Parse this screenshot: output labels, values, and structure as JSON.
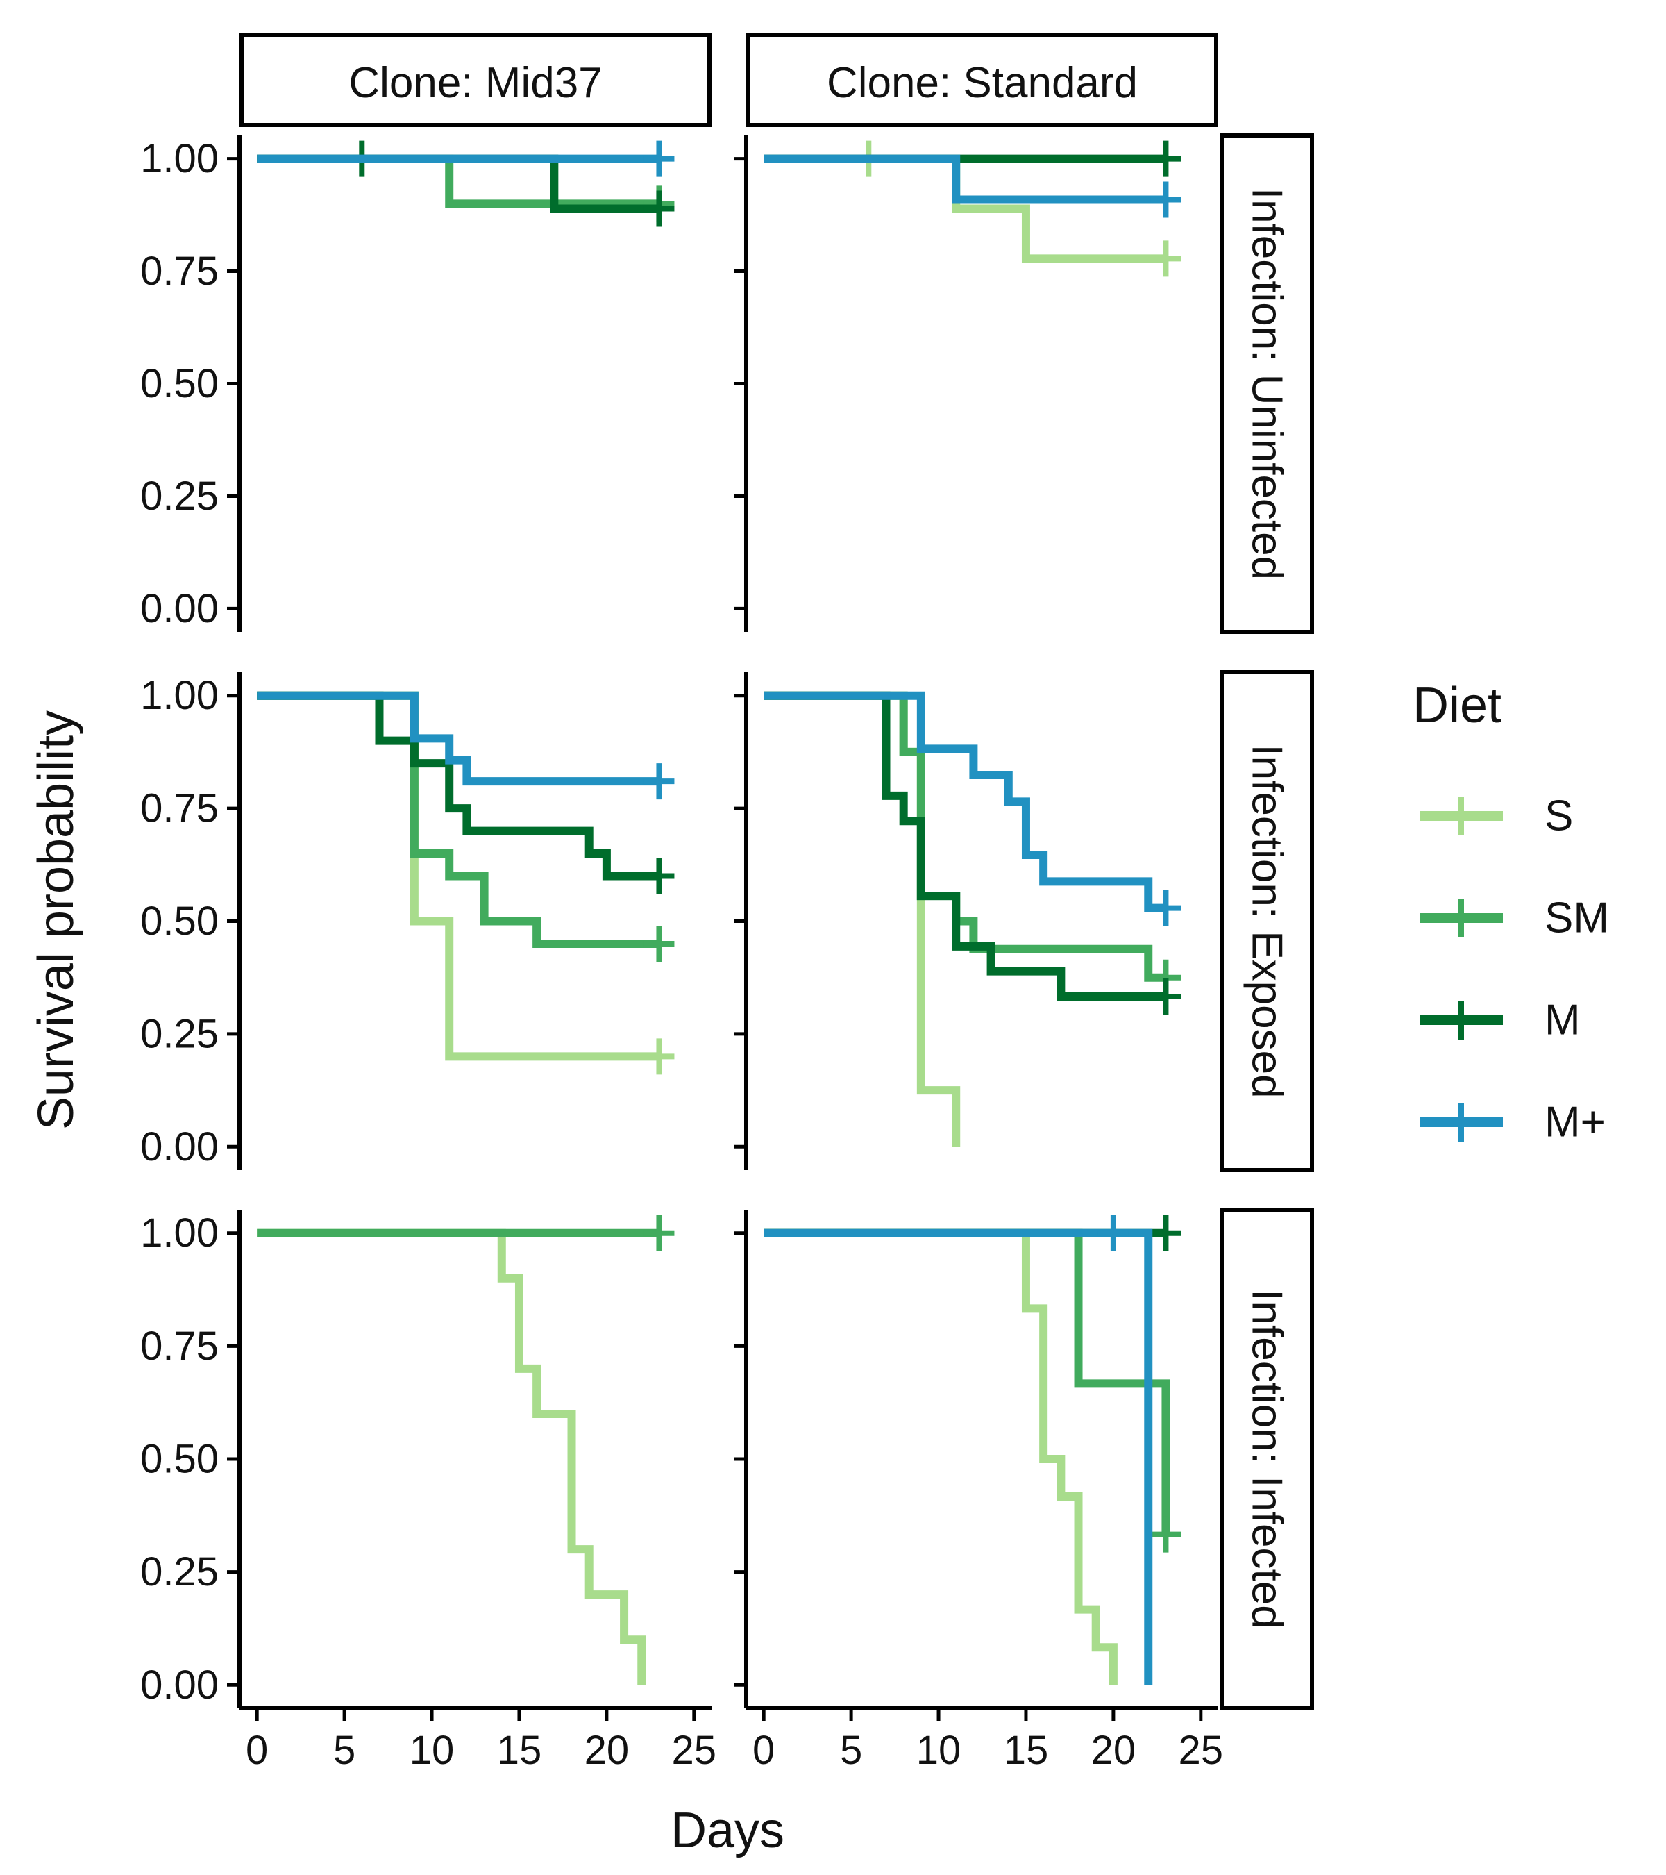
{
  "chart_data": {
    "type": "line",
    "subtype": "kaplan-meier-step",
    "ylabel": "Survival probability",
    "xlabel": "Days",
    "xlim": [
      -1,
      26
    ],
    "ylim": [
      0,
      1
    ],
    "x_ticks": [
      "0",
      "5",
      "10",
      "15",
      "20",
      "25"
    ],
    "y_ticks": [
      "0.00",
      "0.25",
      "0.50",
      "0.75",
      "1.00"
    ],
    "grid": false,
    "legend": {
      "title": "Diet",
      "position": "right",
      "items": [
        {
          "label": "S",
          "color": "#a8dc8c"
        },
        {
          "label": "SM",
          "color": "#41ab5d"
        },
        {
          "label": "M",
          "color": "#006d2c"
        },
        {
          "label": "M+",
          "color": "#2191c1"
        }
      ]
    },
    "column_facets": [
      "Clone: Mid37",
      "Clone: Standard"
    ],
    "row_facets": [
      "Infection: Uninfected",
      "Infection: Exposed",
      "Infection: Infected"
    ],
    "panels": [
      {
        "row": 0,
        "col": 0,
        "series": [
          {
            "name": "SM",
            "color": "#41ab5d",
            "steps": [
              [
                0,
                1
              ],
              [
                11,
                0.9
              ]
            ],
            "end": 23,
            "censor": [
              [
                23,
                0.9
              ]
            ]
          },
          {
            "name": "M",
            "color": "#006d2c",
            "steps": [
              [
                0,
                1
              ],
              [
                17,
                0.889
              ]
            ],
            "end": 23,
            "censor": [
              [
                6,
                1
              ],
              [
                23,
                0.889
              ]
            ]
          },
          {
            "name": "M+",
            "color": "#2191c1",
            "steps": [
              [
                0,
                1
              ]
            ],
            "end": 23,
            "censor": [
              [
                23,
                1
              ]
            ]
          }
        ]
      },
      {
        "row": 0,
        "col": 1,
        "series": [
          {
            "name": "S",
            "color": "#a8dc8c",
            "steps": [
              [
                0,
                1
              ],
              [
                11,
                0.889
              ],
              [
                15,
                0.778
              ]
            ],
            "end": 23,
            "censor": [
              [
                6,
                1
              ],
              [
                23,
                0.778
              ]
            ]
          },
          {
            "name": "M",
            "color": "#006d2c",
            "steps": [
              [
                0,
                1
              ]
            ],
            "end": 23,
            "censor": [
              [
                23,
                1
              ]
            ]
          },
          {
            "name": "M+",
            "color": "#2191c1",
            "steps": [
              [
                0,
                1
              ],
              [
                11,
                0.909
              ]
            ],
            "end": 23,
            "censor": [
              [
                23,
                0.909
              ]
            ]
          }
        ]
      },
      {
        "row": 1,
        "col": 0,
        "series": [
          {
            "name": "S",
            "color": "#a8dc8c",
            "steps": [
              [
                0,
                1
              ],
              [
                9,
                0.5
              ],
              [
                11,
                0.2
              ]
            ],
            "end": 23,
            "censor": [
              [
                23,
                0.2
              ]
            ]
          },
          {
            "name": "SM",
            "color": "#41ab5d",
            "steps": [
              [
                0,
                1
              ],
              [
                9,
                0.65
              ],
              [
                11,
                0.6
              ],
              [
                13,
                0.5
              ],
              [
                16,
                0.45
              ]
            ],
            "end": 23,
            "censor": [
              [
                23,
                0.45
              ]
            ]
          },
          {
            "name": "M",
            "color": "#006d2c",
            "steps": [
              [
                0,
                1
              ],
              [
                7,
                0.9
              ],
              [
                9,
                0.85
              ],
              [
                11,
                0.75
              ],
              [
                12,
                0.7
              ],
              [
                19,
                0.65
              ],
              [
                20,
                0.6
              ]
            ],
            "end": 23,
            "censor": [
              [
                23,
                0.6
              ]
            ]
          },
          {
            "name": "M+",
            "color": "#2191c1",
            "steps": [
              [
                0,
                1
              ],
              [
                9,
                0.905
              ],
              [
                11,
                0.857
              ],
              [
                12,
                0.81
              ]
            ],
            "end": 23,
            "censor": [
              [
                23,
                0.81
              ]
            ]
          }
        ]
      },
      {
        "row": 1,
        "col": 1,
        "series": [
          {
            "name": "S",
            "color": "#a8dc8c",
            "steps": [
              [
                0,
                1
              ],
              [
                8,
                0.875
              ],
              [
                9,
                0.125
              ],
              [
                11,
                0
              ]
            ],
            "end": 11,
            "censor": []
          },
          {
            "name": "SM",
            "color": "#41ab5d",
            "steps": [
              [
                0,
                1
              ],
              [
                8,
                0.875
              ],
              [
                9,
                0.556
              ],
              [
                11,
                0.5
              ],
              [
                12,
                0.438
              ],
              [
                22,
                0.375
              ]
            ],
            "end": 23,
            "censor": [
              [
                23,
                0.375
              ]
            ]
          },
          {
            "name": "M",
            "color": "#006d2c",
            "steps": [
              [
                0,
                1
              ],
              [
                7,
                0.778
              ],
              [
                8,
                0.722
              ],
              [
                9,
                0.556
              ],
              [
                11,
                0.444
              ],
              [
                13,
                0.389
              ],
              [
                17,
                0.333
              ]
            ],
            "end": 23,
            "censor": [
              [
                23,
                0.333
              ]
            ]
          },
          {
            "name": "M+",
            "color": "#2191c1",
            "steps": [
              [
                0,
                1
              ],
              [
                9,
                0.882
              ],
              [
                12,
                0.824
              ],
              [
                14,
                0.765
              ],
              [
                15,
                0.647
              ],
              [
                16,
                0.588
              ],
              [
                22,
                0.529
              ]
            ],
            "end": 23,
            "censor": [
              [
                23,
                0.529
              ]
            ]
          }
        ]
      },
      {
        "row": 2,
        "col": 0,
        "series": [
          {
            "name": "S",
            "color": "#a8dc8c",
            "steps": [
              [
                0,
                1
              ],
              [
                14,
                0.9
              ],
              [
                15,
                0.7
              ],
              [
                16,
                0.6
              ],
              [
                18,
                0.3
              ],
              [
                19,
                0.2
              ],
              [
                21,
                0.1
              ],
              [
                22,
                0
              ]
            ],
            "end": 22,
            "censor": []
          },
          {
            "name": "SM",
            "color": "#41ab5d",
            "steps": [
              [
                0,
                1
              ]
            ],
            "end": 23,
            "censor": [
              [
                23,
                1
              ]
            ]
          }
        ]
      },
      {
        "row": 2,
        "col": 1,
        "series": [
          {
            "name": "S",
            "color": "#a8dc8c",
            "steps": [
              [
                0,
                1
              ],
              [
                15,
                0.833
              ],
              [
                16,
                0.5
              ],
              [
                17,
                0.417
              ],
              [
                18,
                0.167
              ],
              [
                19,
                0.083
              ],
              [
                20,
                0
              ]
            ],
            "end": 20,
            "censor": []
          },
          {
            "name": "SM",
            "color": "#41ab5d",
            "steps": [
              [
                0,
                1
              ],
              [
                18,
                0.667
              ],
              [
                23,
                0.333
              ]
            ],
            "end": 23,
            "censor": [
              [
                23,
                0.333
              ]
            ]
          },
          {
            "name": "M",
            "color": "#006d2c",
            "steps": [
              [
                0,
                1
              ]
            ],
            "end": 23,
            "censor": [
              [
                23,
                1
              ]
            ]
          },
          {
            "name": "M+",
            "color": "#2191c1",
            "steps": [
              [
                0,
                1
              ],
              [
                22,
                0
              ]
            ],
            "end": 22,
            "censor": [
              [
                20,
                1
              ]
            ]
          }
        ]
      }
    ]
  }
}
